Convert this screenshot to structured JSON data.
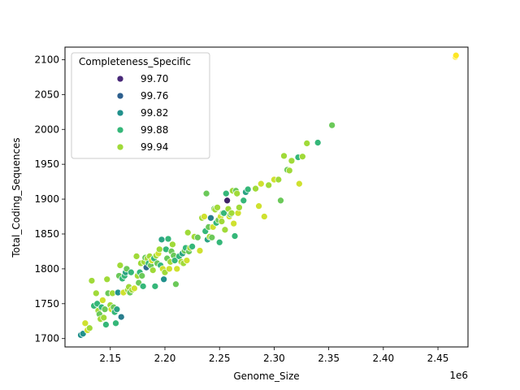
{
  "chart_data": {
    "type": "scatter",
    "title": "",
    "xlabel": "Genome_Size",
    "ylabel": "Total_Coding_Sequences",
    "x_offset_label": "1e6",
    "xlim": [
      2.1085,
      2.4775
    ],
    "ylim": [
      1688,
      2118
    ],
    "x_ticks": [
      2.15,
      2.2,
      2.25,
      2.3,
      2.35,
      2.4,
      2.45
    ],
    "x_tick_labels": [
      "2.15",
      "2.20",
      "2.25",
      "2.30",
      "2.35",
      "2.40",
      "2.45"
    ],
    "y_ticks": [
      1700,
      1750,
      1800,
      1850,
      1900,
      1950,
      2000,
      2050,
      2100
    ],
    "y_tick_labels": [
      "1700",
      "1750",
      "1800",
      "1850",
      "1900",
      "1950",
      "2000",
      "2050",
      "2100"
    ],
    "grid": false,
    "legend": {
      "title": "Completeness_Specific",
      "placement": "top-left",
      "entries": [
        {
          "label": "99.70",
          "color": "#482878"
        },
        {
          "label": "99.76",
          "color": "#2d5f8e"
        },
        {
          "label": "99.82",
          "color": "#21918c"
        },
        {
          "label": "99.88",
          "color": "#35b779"
        },
        {
          "label": "99.94",
          "color": "#a0da39"
        }
      ]
    },
    "color_scale": [
      {
        "value": 99.67,
        "color": "#440154"
      },
      {
        "value": 99.76,
        "color": "#31688e"
      },
      {
        "value": 99.82,
        "color": "#21918c"
      },
      {
        "value": 99.88,
        "color": "#35b779"
      },
      {
        "value": 99.94,
        "color": "#a0da39"
      },
      {
        "value": 100.0,
        "color": "#fde725"
      }
    ],
    "points": [
      [
        2.123,
        1705,
        99.82
      ],
      [
        2.125,
        1707,
        99.82
      ],
      [
        2.127,
        1722,
        99.97
      ],
      [
        2.129,
        1712,
        99.97
      ],
      [
        2.131,
        1715,
        99.94
      ],
      [
        2.133,
        1783,
        99.94
      ],
      [
        2.135,
        1747,
        99.88
      ],
      [
        2.137,
        1765,
        99.94
      ],
      [
        2.138,
        1750,
        99.88
      ],
      [
        2.139,
        1740,
        99.94
      ],
      [
        2.14,
        1735,
        99.91
      ],
      [
        2.141,
        1728,
        99.94
      ],
      [
        2.142,
        1745,
        99.88
      ],
      [
        2.143,
        1755,
        99.97
      ],
      [
        2.144,
        1730,
        99.94
      ],
      [
        2.145,
        1742,
        99.91
      ],
      [
        2.146,
        1720,
        99.88
      ],
      [
        2.147,
        1785,
        99.94
      ],
      [
        2.148,
        1765,
        99.91
      ],
      [
        2.15,
        1748,
        99.94
      ],
      [
        2.151,
        1742,
        99.97
      ],
      [
        2.152,
        1765,
        99.94
      ],
      [
        2.153,
        1745,
        99.91
      ],
      [
        2.154,
        1738,
        99.88
      ],
      [
        2.155,
        1722,
        99.88
      ],
      [
        2.156,
        1742,
        99.85
      ],
      [
        2.157,
        1766,
        99.82
      ],
      [
        2.158,
        1790,
        99.91
      ],
      [
        2.159,
        1805,
        99.94
      ],
      [
        2.16,
        1731,
        99.79
      ],
      [
        2.161,
        1786,
        99.88
      ],
      [
        2.162,
        1766,
        99.97
      ],
      [
        2.163,
        1790,
        99.88
      ],
      [
        2.164,
        1795,
        99.85
      ],
      [
        2.165,
        1800,
        99.91
      ],
      [
        2.166,
        1770,
        99.94
      ],
      [
        2.167,
        1774,
        99.94
      ],
      [
        2.168,
        1766,
        99.91
      ],
      [
        2.169,
        1795,
        99.88
      ],
      [
        2.17,
        1770,
        99.94
      ],
      [
        2.172,
        1772,
        99.97
      ],
      [
        2.174,
        1818,
        99.94
      ],
      [
        2.175,
        1790,
        99.94
      ],
      [
        2.176,
        1780,
        99.91
      ],
      [
        2.177,
        1795,
        99.88
      ],
      [
        2.178,
        1808,
        99.94
      ],
      [
        2.179,
        1790,
        99.91
      ],
      [
        2.18,
        1775,
        99.88
      ],
      [
        2.181,
        1810,
        99.94
      ],
      [
        2.182,
        1816,
        99.91
      ],
      [
        2.183,
        1802,
        99.76
      ],
      [
        2.184,
        1815,
        99.94
      ],
      [
        2.185,
        1808,
        99.88
      ],
      [
        2.186,
        1818,
        99.94
      ],
      [
        2.187,
        1805,
        99.91
      ],
      [
        2.188,
        1812,
        99.97
      ],
      [
        2.189,
        1798,
        99.94
      ],
      [
        2.19,
        1815,
        99.88
      ],
      [
        2.191,
        1775,
        99.88
      ],
      [
        2.192,
        1819,
        99.94
      ],
      [
        2.193,
        1808,
        99.91
      ],
      [
        2.194,
        1822,
        99.97
      ],
      [
        2.195,
        1828,
        99.94
      ],
      [
        2.196,
        1805,
        99.88
      ],
      [
        2.197,
        1842,
        99.85
      ],
      [
        2.198,
        1800,
        99.97
      ],
      [
        2.199,
        1785,
        99.82
      ],
      [
        2.2,
        1795,
        99.94
      ],
      [
        2.201,
        1828,
        99.88
      ],
      [
        2.202,
        1815,
        99.91
      ],
      [
        2.203,
        1843,
        99.88
      ],
      [
        2.204,
        1800,
        99.97
      ],
      [
        2.205,
        1810,
        99.94
      ],
      [
        2.206,
        1825,
        99.91
      ],
      [
        2.207,
        1835,
        99.94
      ],
      [
        2.208,
        1819,
        99.91
      ],
      [
        2.209,
        1812,
        99.88
      ],
      [
        2.21,
        1778,
        99.91
      ],
      [
        2.211,
        1800,
        99.97
      ],
      [
        2.213,
        1818,
        99.88
      ],
      [
        2.215,
        1810,
        99.94
      ],
      [
        2.216,
        1822,
        99.85
      ],
      [
        2.217,
        1808,
        99.94
      ],
      [
        2.218,
        1826,
        99.91
      ],
      [
        2.219,
        1830,
        99.88
      ],
      [
        2.22,
        1812,
        99.97
      ],
      [
        2.221,
        1852,
        99.94
      ],
      [
        2.222,
        1825,
        99.91
      ],
      [
        2.223,
        1830,
        99.94
      ],
      [
        2.225,
        1832,
        99.88
      ],
      [
        2.227,
        1846,
        99.94
      ],
      [
        2.23,
        1845,
        99.91
      ],
      [
        2.232,
        1826,
        99.97
      ],
      [
        2.234,
        1873,
        99.94
      ],
      [
        2.236,
        1875,
        99.97
      ],
      [
        2.237,
        1854,
        99.88
      ],
      [
        2.238,
        1908,
        99.91
      ],
      [
        2.239,
        1842,
        99.85
      ],
      [
        2.24,
        1860,
        99.91
      ],
      [
        2.241,
        1846,
        99.94
      ],
      [
        2.242,
        1873,
        99.79
      ],
      [
        2.243,
        1845,
        99.91
      ],
      [
        2.244,
        1860,
        99.97
      ],
      [
        2.245,
        1886,
        99.91
      ],
      [
        2.246,
        1885,
        99.94
      ],
      [
        2.247,
        1866,
        99.88
      ],
      [
        2.248,
        1888,
        99.94
      ],
      [
        2.249,
        1870,
        99.91
      ],
      [
        2.25,
        1838,
        99.88
      ],
      [
        2.251,
        1875,
        99.97
      ],
      [
        2.252,
        1868,
        99.94
      ],
      [
        2.253,
        1880,
        99.91
      ],
      [
        2.254,
        1880,
        99.88
      ],
      [
        2.255,
        1856,
        99.94
      ],
      [
        2.256,
        1908,
        99.88
      ],
      [
        2.257,
        1898,
        99.7
      ],
      [
        2.258,
        1886,
        99.94
      ],
      [
        2.259,
        1875,
        99.97
      ],
      [
        2.26,
        1878,
        99.91
      ],
      [
        2.261,
        1880,
        99.94
      ],
      [
        2.262,
        1912,
        99.94
      ],
      [
        2.263,
        1865,
        99.97
      ],
      [
        2.264,
        1847,
        99.88
      ],
      [
        2.265,
        1912,
        99.91
      ],
      [
        2.266,
        1908,
        99.94
      ],
      [
        2.267,
        1880,
        99.97
      ],
      [
        2.268,
        1888,
        99.94
      ],
      [
        2.272,
        1898,
        99.88
      ],
      [
        2.274,
        1910,
        99.85
      ],
      [
        2.276,
        1914,
        99.88
      ],
      [
        2.283,
        1915,
        99.94
      ],
      [
        2.286,
        1890,
        99.97
      ],
      [
        2.288,
        1922,
        99.97
      ],
      [
        2.291,
        1875,
        99.97
      ],
      [
        2.295,
        1920,
        99.94
      ],
      [
        2.3,
        1928,
        99.97
      ],
      [
        2.304,
        1928,
        99.94
      ],
      [
        2.306,
        1898,
        99.91
      ],
      [
        2.309,
        1962,
        99.94
      ],
      [
        2.312,
        1942,
        99.91
      ],
      [
        2.314,
        1941,
        99.94
      ],
      [
        2.316,
        1955,
        99.94
      ],
      [
        2.322,
        1960,
        99.88
      ],
      [
        2.323,
        1922,
        99.97
      ],
      [
        2.326,
        1961,
        99.94
      ],
      [
        2.33,
        1980,
        99.94
      ],
      [
        2.34,
        1981,
        99.88
      ],
      [
        2.353,
        2006,
        99.91
      ],
      [
        2.466,
        2104,
        100.0
      ],
      [
        2.4665,
        2106,
        100.0
      ]
    ]
  }
}
